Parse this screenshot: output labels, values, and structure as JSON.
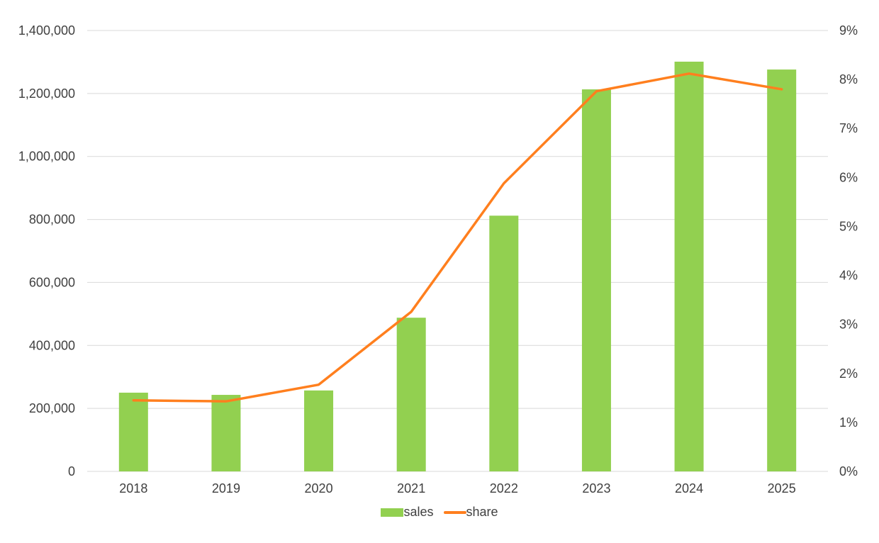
{
  "chart_data": {
    "type": "bar+line",
    "title": "",
    "xlabel": "",
    "ylabel": "",
    "y2label": "",
    "categories": [
      "2018",
      "2019",
      "2020",
      "2021",
      "2022",
      "2023",
      "2024",
      "2025"
    ],
    "series": [
      {
        "name": "sales",
        "type": "bar",
        "axis": "left",
        "color": "#92d050",
        "values": [
          250000,
          243000,
          257000,
          488000,
          812000,
          1213000,
          1301000,
          1276000
        ]
      },
      {
        "name": "share",
        "type": "line",
        "axis": "right",
        "color": "#ff7f1e",
        "values": [
          0.0145,
          0.0143,
          0.0177,
          0.0326,
          0.0588,
          0.0776,
          0.0812,
          0.078
        ]
      }
    ],
    "ylim": [
      0,
      1400000
    ],
    "y_ticks": [
      "0",
      "200,000",
      "400,000",
      "600,000",
      "800,000",
      "1,000,000",
      "1,200,000",
      "1,400,000"
    ],
    "y2lim": [
      0,
      0.09
    ],
    "y2_ticks": [
      "0%",
      "1%",
      "2%",
      "3%",
      "4%",
      "5%",
      "6%",
      "7%",
      "8%",
      "9%"
    ],
    "grid": true,
    "legend_position": "bottom"
  },
  "legend": {
    "sales_label": "sales",
    "share_label": "share"
  }
}
